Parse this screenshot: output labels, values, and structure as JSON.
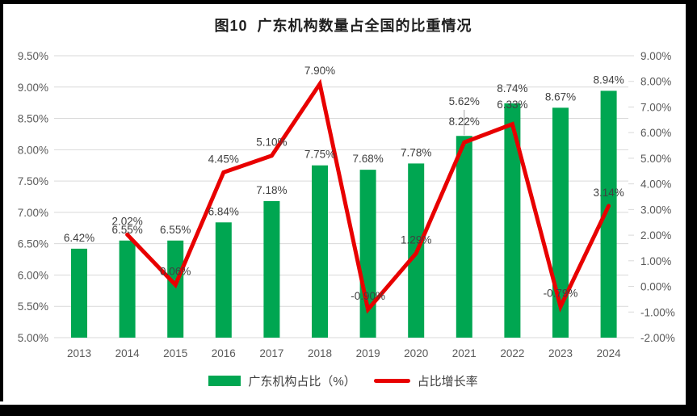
{
  "page_title": "图10  广东机构数量占全国的比重情况",
  "chart_data": {
    "type": "combo-bar-line",
    "title": "图10  广东机构数量占全国的比重情况",
    "categories": [
      "2013",
      "2014",
      "2015",
      "2016",
      "2017",
      "2018",
      "2019",
      "2020",
      "2021",
      "2022",
      "2023",
      "2024"
    ],
    "series": [
      {
        "name": "广东机构占比（%）",
        "type": "bar",
        "axis": "left",
        "color": "#00A651",
        "values": [
          6.42,
          6.55,
          6.55,
          6.84,
          7.18,
          7.75,
          7.68,
          7.78,
          8.22,
          8.74,
          8.67,
          8.94
        ],
        "labels": [
          "6.42%",
          "6.55%",
          "6.55%",
          "6.84%",
          "7.18%",
          "7.75%",
          "7.68%",
          "7.78%",
          "8.22%",
          "8.74%",
          "8.67%",
          "8.94%"
        ]
      },
      {
        "name": "占比增长率",
        "type": "line",
        "axis": "right",
        "color": "#E80000",
        "values": [
          null,
          2.02,
          0.06,
          4.45,
          5.1,
          7.9,
          -0.9,
          1.29,
          5.62,
          6.33,
          -0.79,
          3.14
        ],
        "labels": [
          null,
          "2.02%",
          "0.06%",
          "4.45%",
          "5.10%",
          "7.90%",
          "-0.90%",
          "1.29%",
          "5.62%",
          "6.33%",
          "-0.79%",
          "3.14%"
        ]
      }
    ],
    "left_axis": {
      "min": 5.0,
      "max": 9.5,
      "step": 0.5,
      "ticks": [
        "9.50%",
        "9.00%",
        "8.50%",
        "8.00%",
        "7.50%",
        "7.00%",
        "6.50%",
        "6.00%",
        "5.50%",
        "5.00%"
      ]
    },
    "right_axis": {
      "min": -2.0,
      "max": 9.0,
      "step": 1.0,
      "ticks": [
        "9.00%",
        "8.00%",
        "7.00%",
        "6.00%",
        "5.00%",
        "4.00%",
        "3.00%",
        "2.00%",
        "1.00%",
        "0.00%",
        "-1.00%",
        "-2.00%"
      ]
    },
    "grid": true,
    "legend_position": "bottom",
    "colors": {
      "bar": "#00A651",
      "line": "#E80000",
      "gridline": "#D9D9D9",
      "leader_line": "#A6A6A6",
      "label_text": "#404040",
      "axis_text": "#595959"
    }
  },
  "legend": {
    "items": [
      {
        "label": "广东机构占比（%）",
        "color": "#00A651",
        "type": "bar"
      },
      {
        "label": "占比增长率",
        "color": "#E80000",
        "type": "line"
      }
    ]
  }
}
